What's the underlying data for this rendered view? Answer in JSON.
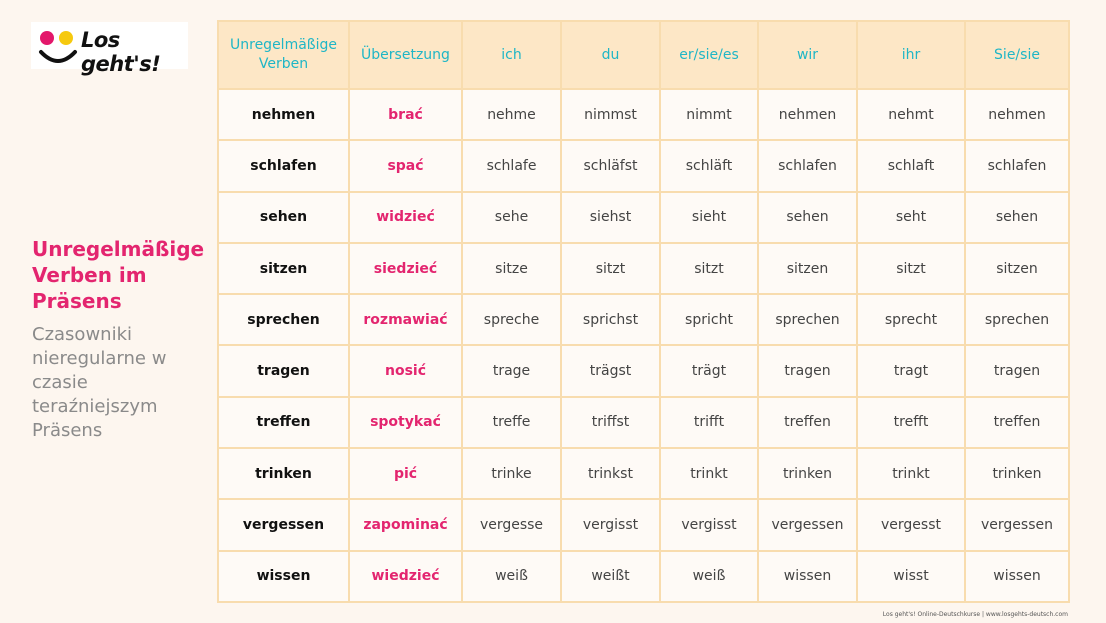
{
  "logo": {
    "text": "Los geht's!"
  },
  "side": {
    "title": "Unregelmäßige Verben im Präsens",
    "subtitle": "Czasowniki nieregularne w czasie teraźniejszym Präsens"
  },
  "table": {
    "headers": [
      "Unregelmäßige Verben",
      "Übersetzung",
      "ich",
      "du",
      "er/sie/es",
      "wir",
      "ihr",
      "Sie/sie"
    ],
    "rows": [
      [
        "nehmen",
        "brać",
        "nehme",
        "nimmst",
        "nimmt",
        "nehmen",
        "nehmt",
        "nehmen"
      ],
      [
        "schlafen",
        "spać",
        "schlafe",
        "schläfst",
        "schläft",
        "schlafen",
        "schlaft",
        "schlafen"
      ],
      [
        "sehen",
        "widzieć",
        "sehe",
        "siehst",
        "sieht",
        "sehen",
        "seht",
        "sehen"
      ],
      [
        "sitzen",
        "siedzieć",
        "sitze",
        "sitzt",
        "sitzt",
        "sitzen",
        "sitzt",
        "sitzen"
      ],
      [
        "sprechen",
        "rozmawiać",
        "spreche",
        "sprichst",
        "spricht",
        "sprechen",
        "sprecht",
        "sprechen"
      ],
      [
        "tragen",
        "nosić",
        "trage",
        "trägst",
        "trägt",
        "tragen",
        "tragt",
        "tragen"
      ],
      [
        "treffen",
        "spotykać",
        "treffe",
        "triffst",
        "trifft",
        "treffen",
        "trefft",
        "treffen"
      ],
      [
        "trinken",
        "pić",
        "trinke",
        "trinkst",
        "trinkt",
        "trinken",
        "trinkt",
        "trinken"
      ],
      [
        "vergessen",
        "zapominać",
        "vergesse",
        "vergisst",
        "vergisst",
        "vergessen",
        "vergesst",
        "vergessen"
      ],
      [
        "wissen",
        "wiedzieć",
        "weiß",
        "weißt",
        "weiß",
        "wissen",
        "wisst",
        "wissen"
      ]
    ]
  },
  "footer": {
    "text": "Los geht's! Online-Deutschkurse  |  www.losgehts-deutsch.com"
  },
  "colors": {
    "accent_pink": "#e3256f",
    "header_teal": "#1fb6c6",
    "header_bg": "#fde7c6",
    "border": "#f8dcae",
    "logo_yellow": "#f6c90e"
  }
}
